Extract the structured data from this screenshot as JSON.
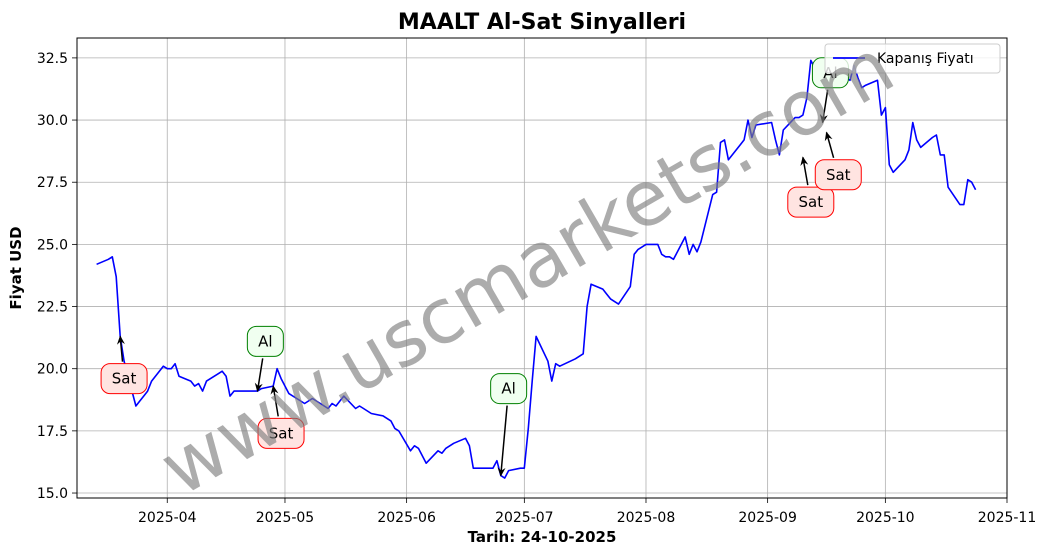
{
  "chart_data": {
    "type": "line",
    "title": "MAALT Al-Sat Sinyalleri",
    "xlabel": "Tarih: 24-10-2025",
    "ylabel": "Fiyat USD",
    "grid": true,
    "legend_position": "top-right",
    "xlim": [
      "2025-03-09",
      "2025-11-01"
    ],
    "ylim": [
      14.8,
      33.3
    ],
    "x_ticks": [
      "2025-04-01",
      "2025-05-01",
      "2025-06-01",
      "2025-07-01",
      "2025-08-01",
      "2025-09-01",
      "2025-10-01",
      "2025-11-01"
    ],
    "x_tick_labels": [
      "2025-04",
      "2025-05",
      "2025-06",
      "2025-07",
      "2025-08",
      "2025-09",
      "2025-10",
      "2025-11"
    ],
    "y_ticks": [
      15.0,
      17.5,
      20.0,
      22.5,
      25.0,
      27.5,
      30.0,
      32.5
    ],
    "y_tick_labels": [
      "15.0",
      "17.5",
      "20.0",
      "22.5",
      "25.0",
      "27.5",
      "30.0",
      "32.5"
    ],
    "series": [
      {
        "name": "Kapanış Fiyatı",
        "color": "#0000ff",
        "points": [
          [
            "2025-03-14",
            24.2
          ],
          [
            "2025-03-17",
            24.4
          ],
          [
            "2025-03-18",
            24.5
          ],
          [
            "2025-03-19",
            23.7
          ],
          [
            "2025-03-20",
            21.3
          ],
          [
            "2025-03-21",
            20.3
          ],
          [
            "2025-03-24",
            18.5
          ],
          [
            "2025-03-25",
            18.7
          ],
          [
            "2025-03-26",
            18.9
          ],
          [
            "2025-03-27",
            19.1
          ],
          [
            "2025-03-28",
            19.5
          ],
          [
            "2025-03-31",
            20.1
          ],
          [
            "2025-04-01",
            20.0
          ],
          [
            "2025-04-02",
            20.0
          ],
          [
            "2025-04-03",
            20.2
          ],
          [
            "2025-04-04",
            19.7
          ],
          [
            "2025-04-07",
            19.5
          ],
          [
            "2025-04-08",
            19.3
          ],
          [
            "2025-04-09",
            19.4
          ],
          [
            "2025-04-10",
            19.1
          ],
          [
            "2025-04-11",
            19.5
          ],
          [
            "2025-04-14",
            19.8
          ],
          [
            "2025-04-15",
            19.9
          ],
          [
            "2025-04-16",
            19.7
          ],
          [
            "2025-04-17",
            18.9
          ],
          [
            "2025-04-18",
            19.1
          ],
          [
            "2025-04-21",
            19.1
          ],
          [
            "2025-04-22",
            19.1
          ],
          [
            "2025-04-23",
            19.1
          ],
          [
            "2025-04-24",
            19.1
          ],
          [
            "2025-04-25",
            19.2
          ],
          [
            "2025-04-28",
            19.3
          ],
          [
            "2025-04-29",
            20.0
          ],
          [
            "2025-04-30",
            19.6
          ],
          [
            "2025-05-01",
            19.3
          ],
          [
            "2025-05-02",
            19.0
          ],
          [
            "2025-05-05",
            18.7
          ],
          [
            "2025-05-06",
            18.6
          ],
          [
            "2025-05-07",
            18.7
          ],
          [
            "2025-05-08",
            18.8
          ],
          [
            "2025-05-09",
            18.7
          ],
          [
            "2025-05-12",
            18.4
          ],
          [
            "2025-05-13",
            18.6
          ],
          [
            "2025-05-14",
            18.5
          ],
          [
            "2025-05-15",
            18.7
          ],
          [
            "2025-05-16",
            18.9
          ],
          [
            "2025-05-19",
            18.4
          ],
          [
            "2025-05-20",
            18.5
          ],
          [
            "2025-05-21",
            18.4
          ],
          [
            "2025-05-22",
            18.3
          ],
          [
            "2025-05-23",
            18.2
          ],
          [
            "2025-05-26",
            18.1
          ],
          [
            "2025-05-27",
            18.0
          ],
          [
            "2025-05-28",
            17.9
          ],
          [
            "2025-05-29",
            17.6
          ],
          [
            "2025-05-30",
            17.5
          ],
          [
            "2025-06-02",
            16.7
          ],
          [
            "2025-06-03",
            16.9
          ],
          [
            "2025-06-04",
            16.8
          ],
          [
            "2025-06-05",
            16.5
          ],
          [
            "2025-06-06",
            16.2
          ],
          [
            "2025-06-09",
            16.7
          ],
          [
            "2025-06-10",
            16.6
          ],
          [
            "2025-06-11",
            16.8
          ],
          [
            "2025-06-12",
            16.9
          ],
          [
            "2025-06-13",
            17.0
          ],
          [
            "2025-06-16",
            17.2
          ],
          [
            "2025-06-17",
            16.9
          ],
          [
            "2025-06-18",
            16.0
          ],
          [
            "2025-06-20",
            16.0
          ],
          [
            "2025-06-23",
            16.0
          ],
          [
            "2025-06-24",
            16.3
          ],
          [
            "2025-06-25",
            15.7
          ],
          [
            "2025-06-26",
            15.6
          ],
          [
            "2025-06-27",
            15.9
          ],
          [
            "2025-06-30",
            16.0
          ],
          [
            "2025-07-01",
            16.0
          ],
          [
            "2025-07-02",
            17.6
          ],
          [
            "2025-07-03",
            19.5
          ],
          [
            "2025-07-04",
            21.3
          ],
          [
            "2025-07-07",
            20.3
          ],
          [
            "2025-07-08",
            19.5
          ],
          [
            "2025-07-09",
            20.2
          ],
          [
            "2025-07-10",
            20.1
          ],
          [
            "2025-07-14",
            20.4
          ],
          [
            "2025-07-15",
            20.5
          ],
          [
            "2025-07-16",
            20.6
          ],
          [
            "2025-07-17",
            22.5
          ],
          [
            "2025-07-18",
            23.4
          ],
          [
            "2025-07-21",
            23.2
          ],
          [
            "2025-07-22",
            23.0
          ],
          [
            "2025-07-23",
            22.8
          ],
          [
            "2025-07-24",
            22.7
          ],
          [
            "2025-07-25",
            22.6
          ],
          [
            "2025-07-28",
            23.3
          ],
          [
            "2025-07-29",
            24.6
          ],
          [
            "2025-07-30",
            24.8
          ],
          [
            "2025-07-31",
            24.9
          ],
          [
            "2025-08-01",
            25.0
          ],
          [
            "2025-08-04",
            25.0
          ],
          [
            "2025-08-05",
            24.6
          ],
          [
            "2025-08-06",
            24.5
          ],
          [
            "2025-08-07",
            24.5
          ],
          [
            "2025-08-08",
            24.4
          ],
          [
            "2025-08-11",
            25.3
          ],
          [
            "2025-08-12",
            24.6
          ],
          [
            "2025-08-13",
            25.0
          ],
          [
            "2025-08-14",
            24.7
          ],
          [
            "2025-08-15",
            25.1
          ],
          [
            "2025-08-18",
            27.0
          ],
          [
            "2025-08-19",
            27.1
          ],
          [
            "2025-08-20",
            29.1
          ],
          [
            "2025-08-21",
            29.2
          ],
          [
            "2025-08-22",
            28.4
          ],
          [
            "2025-08-25",
            29.0
          ],
          [
            "2025-08-26",
            29.2
          ],
          [
            "2025-08-27",
            30.0
          ],
          [
            "2025-08-28",
            29.3
          ],
          [
            "2025-08-29",
            29.8
          ],
          [
            "2025-09-02",
            29.9
          ],
          [
            "2025-09-03",
            29.2
          ],
          [
            "2025-09-04",
            28.6
          ],
          [
            "2025-09-05",
            29.6
          ],
          [
            "2025-09-08",
            30.1
          ],
          [
            "2025-09-09",
            30.1
          ],
          [
            "2025-09-10",
            30.2
          ],
          [
            "2025-09-11",
            30.9
          ],
          [
            "2025-09-12",
            32.4
          ],
          [
            "2025-09-15",
            31.5
          ],
          [
            "2025-09-16",
            31.4
          ],
          [
            "2025-09-17",
            31.6
          ],
          [
            "2025-09-18",
            31.8
          ],
          [
            "2025-09-19",
            31.9
          ],
          [
            "2025-09-22",
            31.6
          ],
          [
            "2025-09-23",
            32.2
          ],
          [
            "2025-09-24",
            31.7
          ],
          [
            "2025-09-25",
            31.3
          ],
          [
            "2025-09-26",
            31.4
          ],
          [
            "2025-09-29",
            31.6
          ],
          [
            "2025-09-30",
            30.2
          ],
          [
            "2025-10-01",
            30.5
          ],
          [
            "2025-10-02",
            28.2
          ],
          [
            "2025-10-03",
            27.9
          ],
          [
            "2025-10-06",
            28.4
          ],
          [
            "2025-10-07",
            28.8
          ],
          [
            "2025-10-08",
            29.9
          ],
          [
            "2025-10-09",
            29.2
          ],
          [
            "2025-10-10",
            28.9
          ],
          [
            "2025-10-13",
            29.3
          ],
          [
            "2025-10-14",
            29.4
          ],
          [
            "2025-10-15",
            28.6
          ],
          [
            "2025-10-16",
            28.6
          ],
          [
            "2025-10-17",
            27.3
          ],
          [
            "2025-10-20",
            26.6
          ],
          [
            "2025-10-21",
            26.6
          ],
          [
            "2025-10-22",
            27.6
          ],
          [
            "2025-10-23",
            27.5
          ],
          [
            "2025-10-24",
            27.2
          ]
        ]
      }
    ],
    "annotations": [
      {
        "text": "Sat",
        "kind": "sell",
        "point": [
          "2025-03-20",
          21.3
        ],
        "label": [
          "2025-03-21",
          19.6
        ]
      },
      {
        "text": "Al",
        "kind": "buy",
        "point": [
          "2025-04-24",
          19.1
        ],
        "label": [
          "2025-04-26",
          21.1
        ]
      },
      {
        "text": "Sat",
        "kind": "sell",
        "point": [
          "2025-04-28",
          19.3
        ],
        "label": [
          "2025-04-30",
          17.4
        ]
      },
      {
        "text": "Al",
        "kind": "buy",
        "point": [
          "2025-06-25",
          15.7
        ],
        "label": [
          "2025-06-27",
          19.2
        ]
      },
      {
        "text": "Sat",
        "kind": "sell",
        "point": [
          "2025-09-10",
          28.5
        ],
        "label": [
          "2025-09-12",
          26.7
        ]
      },
      {
        "text": "Al",
        "kind": "buy",
        "point": [
          "2025-09-15",
          29.9
        ],
        "label": [
          "2025-09-17",
          31.9
        ]
      },
      {
        "text": "Sat",
        "kind": "sell",
        "point": [
          "2025-09-16",
          29.5
        ],
        "label": [
          "2025-09-19",
          27.8
        ]
      }
    ],
    "colors": {
      "sell_edge": "#ff0000",
      "sell_fill": "#ffe4e1",
      "buy_edge": "#008000",
      "buy_fill": "#f0fff0"
    }
  },
  "watermark": "www.uscmarkets.com"
}
